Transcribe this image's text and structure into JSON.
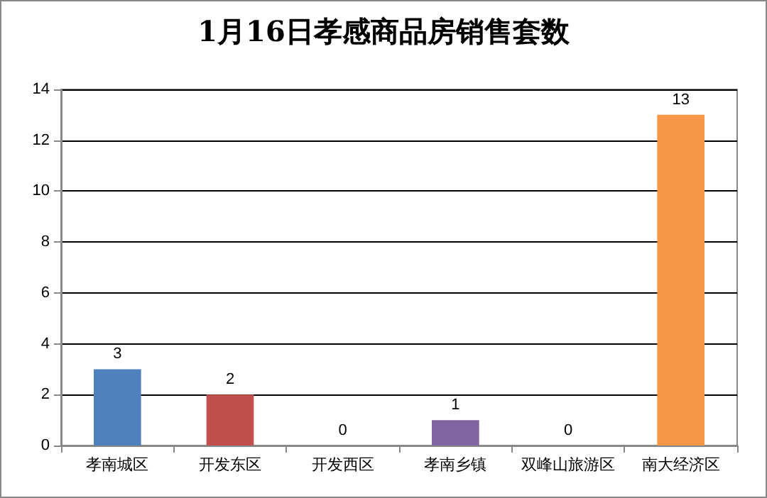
{
  "chart_data": {
    "type": "bar",
    "title": "1月16日孝感商品房销售套数",
    "categories": [
      "孝南城区",
      "开发东区",
      "开发西区",
      "孝南乡镇",
      "双峰山旅游区",
      "南大经济区"
    ],
    "values": [
      3,
      2,
      0,
      1,
      0,
      13
    ],
    "colors": [
      "#4f81bd",
      "#c0504d",
      "#9bbb59",
      "#8064a2",
      "#4bacc6",
      "#f79646"
    ],
    "ylim": [
      0,
      14
    ],
    "yticks": [
      0,
      2,
      4,
      6,
      8,
      10,
      12,
      14
    ],
    "grid": "y",
    "data_labels": true
  }
}
